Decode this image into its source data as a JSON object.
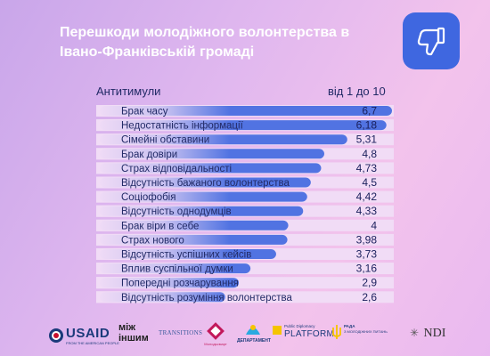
{
  "header": {
    "title_line1": "Перешкоди молодіжного волонтерства в",
    "title_line2": "Івано-Франківській громаді"
  },
  "subheader": {
    "left": "Антитимули",
    "right": "від 1 до 10"
  },
  "icon": "thumbs-down-icon",
  "colors": {
    "bar": "#3f67e0",
    "row_bg": "#f1dcf6",
    "text": "#222a66",
    "value": "#1a1f5c",
    "badge": "#3f67e0"
  },
  "chart_data": {
    "type": "bar",
    "orientation": "horizontal",
    "title": "Перешкоди молодіжного волонтерства в Івано-Франківській громаді",
    "xlim": [
      1,
      10
    ],
    "categories": [
      "Брак часу",
      "Недостатність інформації",
      "Сімейні обставини",
      "Брак довіри",
      "Страх відповідальності",
      "Відсутність бажаного волонтерства",
      "Соціофобія",
      "Відсутність однодумців",
      "Брак віри в себе",
      "Страх нового",
      "Відсутність успішних кейсів",
      "Вплив суспільної думки",
      "Попередні розчарування",
      "Відсутність розуміння волонтерства"
    ],
    "values": [
      6.7,
      6.18,
      5.31,
      4.8,
      4.73,
      4.5,
      4.42,
      4.33,
      4,
      3.98,
      3.73,
      3.16,
      2.9,
      2.6
    ],
    "labels": [
      "6,7",
      "6,18",
      "5,31",
      "4,8",
      "4,73",
      "4,5",
      "4,42",
      "4,33",
      "4",
      "3,98",
      "3,73",
      "3,16",
      "2,9",
      "2,6"
    ]
  },
  "footer": {
    "logos": [
      "USAID",
      "FROM THE AMERICAN PEOPLE",
      "між",
      "іншим",
      "TRANSITIONS",
      "Молодьсмарт",
      "ДЕПАРТАМЕНТ",
      "Public Diplomacy",
      "PLATFORM",
      "РАДА",
      "З МОЛОДІЖНИХ ПИТАНЬ",
      "NDI"
    ]
  }
}
